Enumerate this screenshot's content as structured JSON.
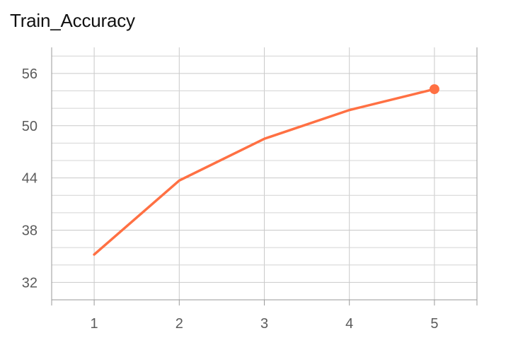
{
  "chart_data": {
    "type": "line",
    "title": "Train_Accuracy",
    "xlabel": "",
    "ylabel": "",
    "x": [
      1,
      2,
      3,
      4,
      5
    ],
    "xlim": [
      0.5,
      5.5
    ],
    "ylim": [
      30,
      59
    ],
    "yticks": [
      32,
      38,
      44,
      50,
      56
    ],
    "xticks": [
      1,
      2,
      3,
      4,
      5
    ],
    "grid": true,
    "series": [
      {
        "values": [
          35.2,
          43.7,
          48.5,
          51.8,
          54.2
        ],
        "color": "#ff7043",
        "last_point_marker": true
      }
    ]
  }
}
